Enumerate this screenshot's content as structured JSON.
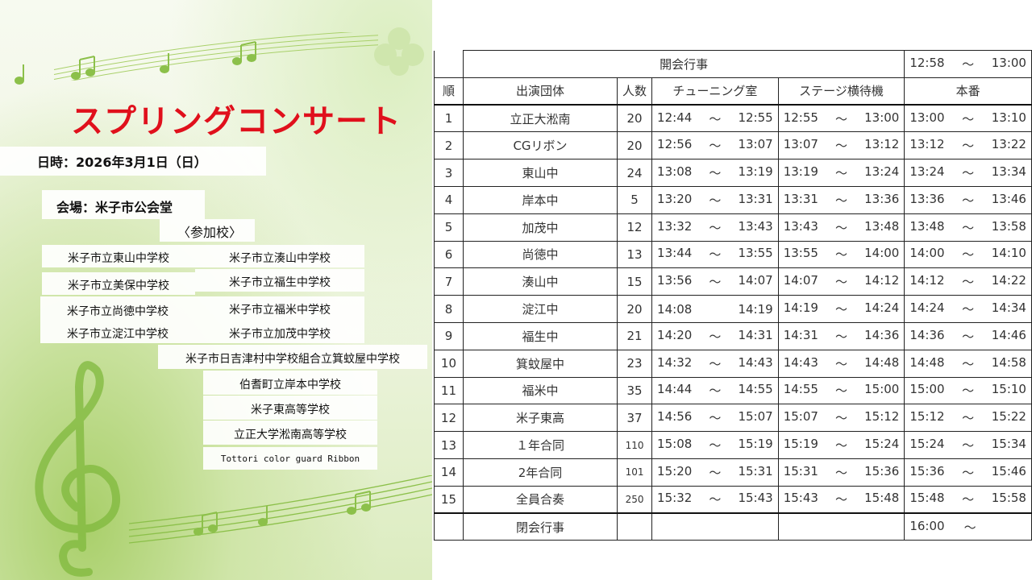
{
  "poster": {
    "title": "スプリングコンサート",
    "date": "日時：2026年3月1日（日）",
    "venue": "会場：米子市公会堂",
    "participants_heading": "〈参加校〉",
    "schools": [
      "米子市立東山中学校",
      "米子市立湊山中学校",
      "米子市立美保中学校",
      "米子市立福生中学校",
      "米子市立尚徳中学校",
      "米子市立福米中学校",
      "米子市立淀江中学校",
      "米子市立加茂中学校",
      "米子市日吉津村中学校組合立箕蚊屋中学校",
      "伯耆町立岸本中学校",
      "米子東高等学校",
      "立正大学淞南高等学校",
      "Tottori color guard Ribbon"
    ],
    "title_color": "#e0101c"
  },
  "schedule": {
    "opening": {
      "label": "開会行事",
      "start": "12:58",
      "end": "13:00"
    },
    "headers": [
      "順",
      "出演団体",
      "人数",
      "チューニング室",
      "ステージ横待機",
      "本番"
    ],
    "tilde": "～",
    "rows": [
      {
        "no": "1",
        "group": "立正大淞南",
        "count": "20",
        "tuning": [
          "12:44",
          "12:55"
        ],
        "standby": [
          "12:55",
          "13:00"
        ],
        "perform": [
          "13:00",
          "13:10"
        ]
      },
      {
        "no": "2",
        "group": "CGリボン",
        "count": "20",
        "tuning": [
          "12:56",
          "13:07"
        ],
        "standby": [
          "13:07",
          "13:12"
        ],
        "perform": [
          "13:12",
          "13:22"
        ]
      },
      {
        "no": "3",
        "group": "東山中",
        "count": "24",
        "tuning": [
          "13:08",
          "13:19"
        ],
        "standby": [
          "13:19",
          "13:24"
        ],
        "perform": [
          "13:24",
          "13:34"
        ]
      },
      {
        "no": "4",
        "group": "岸本中",
        "count": "5",
        "tuning": [
          "13:20",
          "13:31"
        ],
        "standby": [
          "13:31",
          "13:36"
        ],
        "perform": [
          "13:36",
          "13:46"
        ]
      },
      {
        "no": "5",
        "group": "加茂中",
        "count": "12",
        "tuning": [
          "13:32",
          "13:43"
        ],
        "standby": [
          "13:43",
          "13:48"
        ],
        "perform": [
          "13:48",
          "13:58"
        ]
      },
      {
        "no": "6",
        "group": "尚徳中",
        "count": "13",
        "tuning": [
          "13:44",
          "13:55"
        ],
        "standby": [
          "13:55",
          "14:00"
        ],
        "perform": [
          "14:00",
          "14:10"
        ]
      },
      {
        "no": "7",
        "group": "湊山中",
        "count": "15",
        "tuning": [
          "13:56",
          "14:07"
        ],
        "standby": [
          "14:07",
          "14:12"
        ],
        "perform": [
          "14:12",
          "14:22"
        ]
      },
      {
        "no": "8",
        "group": "淀江中",
        "count": "20",
        "tuning": [
          "14:08",
          "14:19"
        ],
        "tuning_no_tilde": true,
        "standby": [
          "14:19",
          "14:24"
        ],
        "perform": [
          "14:24",
          "14:34"
        ]
      },
      {
        "no": "9",
        "group": "福生中",
        "count": "21",
        "tuning": [
          "14:20",
          "14:31"
        ],
        "standby": [
          "14:31",
          "14:36"
        ],
        "perform": [
          "14:36",
          "14:46"
        ]
      },
      {
        "no": "10",
        "group": "箕蚊屋中",
        "count": "23",
        "tuning": [
          "14:32",
          "14:43"
        ],
        "standby": [
          "14:43",
          "14:48"
        ],
        "perform": [
          "14:48",
          "14:58"
        ]
      },
      {
        "no": "11",
        "group": "福米中",
        "count": "35",
        "tuning": [
          "14:44",
          "14:55"
        ],
        "standby": [
          "14:55",
          "15:00"
        ],
        "perform": [
          "15:00",
          "15:10"
        ]
      },
      {
        "no": "12",
        "group": "米子東高",
        "count": "37",
        "tuning": [
          "14:56",
          "15:07"
        ],
        "standby": [
          "15:07",
          "15:12"
        ],
        "perform": [
          "15:12",
          "15:22"
        ]
      },
      {
        "no": "13",
        "group": "１年合同",
        "count": "110",
        "tuning": [
          "15:08",
          "15:19"
        ],
        "standby": [
          "15:19",
          "15:24"
        ],
        "perform": [
          "15:24",
          "15:34"
        ]
      },
      {
        "no": "14",
        "group": "2年合同",
        "count": "101",
        "tuning": [
          "15:20",
          "15:31"
        ],
        "standby": [
          "15:31",
          "15:36"
        ],
        "perform": [
          "15:36",
          "15:46"
        ]
      },
      {
        "no": "15",
        "group": "全員合奏",
        "count": "250",
        "tuning": [
          "15:32",
          "15:43"
        ],
        "standby": [
          "15:43",
          "15:48"
        ],
        "perform": [
          "15:48",
          "15:58"
        ]
      }
    ],
    "closing": {
      "label": "閉会行事",
      "start": "16:00"
    }
  }
}
